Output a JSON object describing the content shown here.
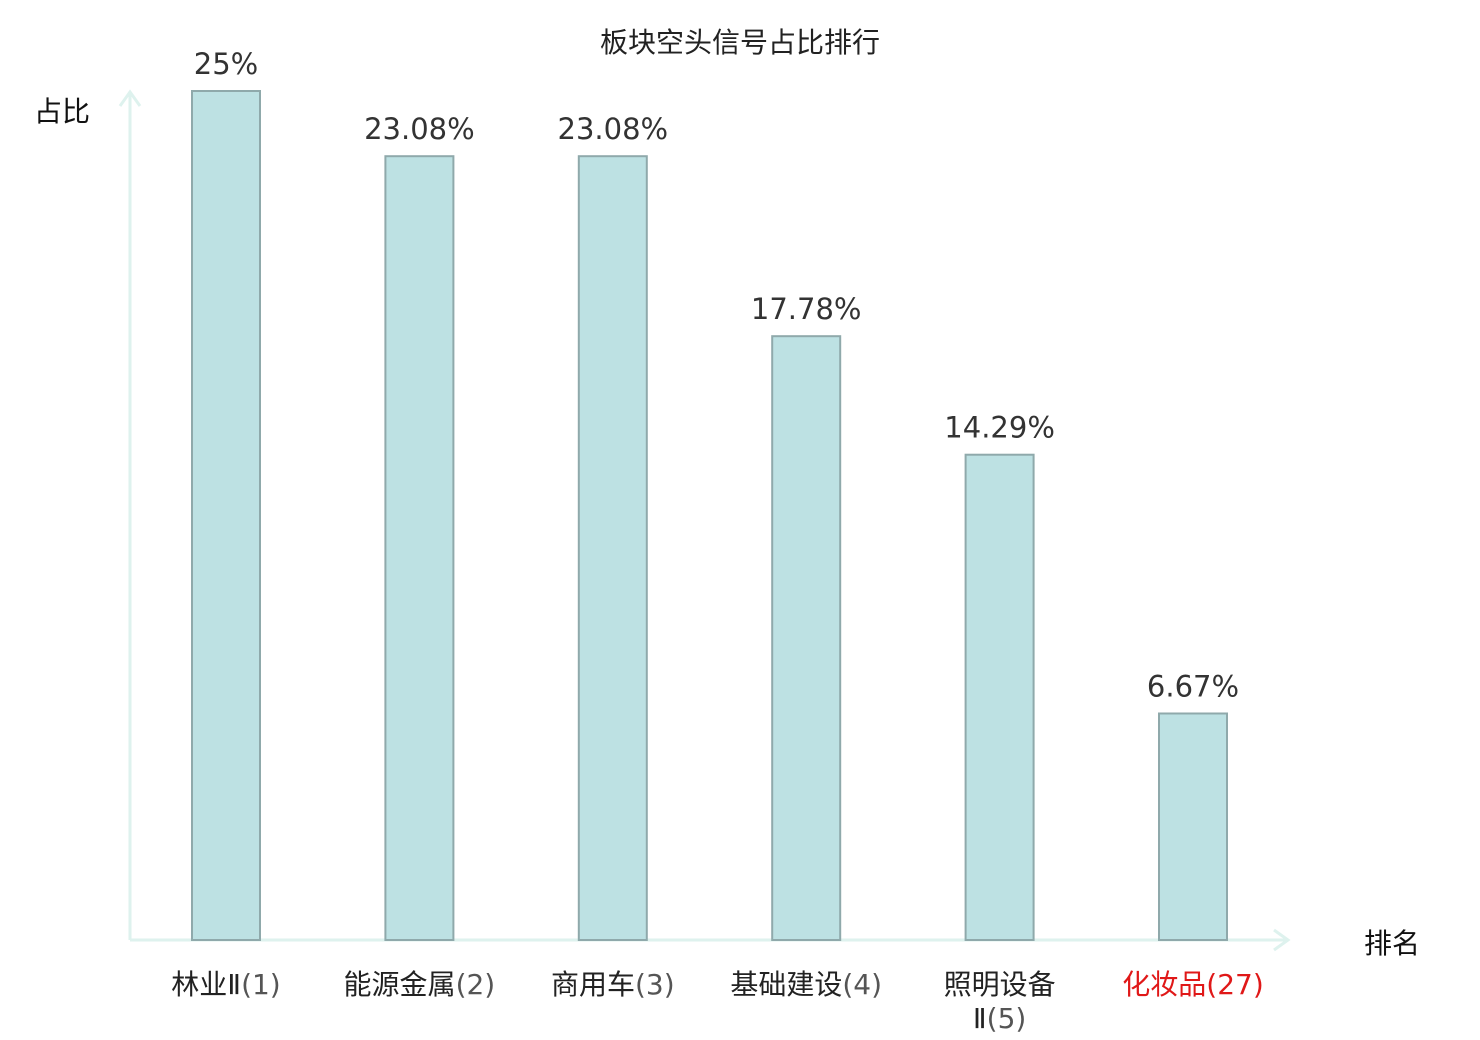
{
  "chart_data": {
    "type": "bar",
    "title": "板块空头信号占比排行",
    "ylabel": "占比",
    "xlabel": "排名",
    "ylim": [
      0,
      25
    ],
    "grid": false,
    "legend": "none",
    "bar_color": "#bde1e3",
    "bar_edge_color": "#8fa9ab",
    "axis_color": "#def2ee",
    "highlight_color": "#e01818",
    "categories": [
      {
        "name": "林业Ⅱ",
        "rank": "(1)",
        "value": 25,
        "label": "25%",
        "highlight": false
      },
      {
        "name": "能源金属",
        "rank": "(2)",
        "value": 23.08,
        "label": "23.08%",
        "highlight": false
      },
      {
        "name": "商用车",
        "rank": "(3)",
        "value": 23.08,
        "label": "23.08%",
        "highlight": false
      },
      {
        "name": "基础建设",
        "rank": "(4)",
        "value": 17.78,
        "label": "17.78%",
        "highlight": false
      },
      {
        "name": "照明设备",
        "name_line2": "Ⅱ",
        "rank": "(5)",
        "value": 14.29,
        "label": "14.29%",
        "highlight": false
      },
      {
        "name": "化妆品",
        "rank": "(27)",
        "value": 6.67,
        "label": "6.67%",
        "highlight": true
      }
    ]
  }
}
